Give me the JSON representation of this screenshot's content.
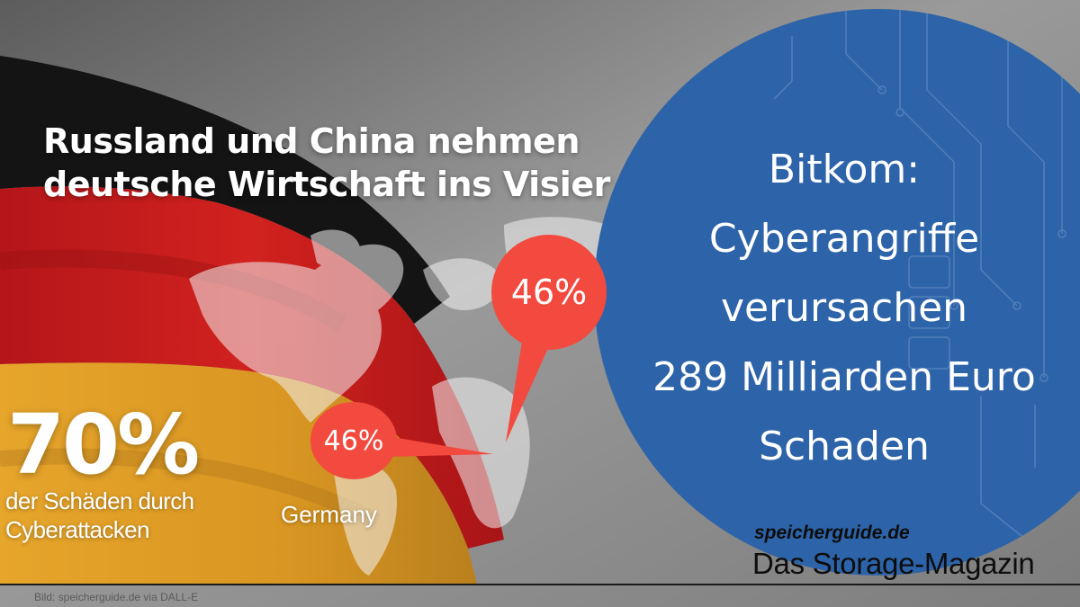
{
  "headline": {
    "line1": "Russland und China nehmen",
    "line2": "deutsche Wirtschaft ins Visier"
  },
  "bubbles": {
    "big_value": "46%",
    "small_value": "46%"
  },
  "stat": {
    "value": "70%",
    "caption_line1": "der Schäden durch",
    "caption_line2": "Cyberattacken"
  },
  "map_label": "Germany",
  "panel": {
    "line1": "Bitkom:",
    "line2": "Cyberangriffe",
    "line3": "verursachen",
    "line4": "289 Milliarden Euro",
    "line5": "Schaden"
  },
  "brand": {
    "url": "speicherguide.de",
    "tagline": "Das Storage-Magazin"
  },
  "credit": "Bild: speicherguide.de via DALL-E",
  "colors": {
    "panel_blue": "#2d63a8",
    "bubble_red": "#f24a3f",
    "flag_black": "#141414",
    "flag_red": "#c8191d",
    "flag_gold": "#e2a02a",
    "background_gray": "#8d8d8d"
  }
}
